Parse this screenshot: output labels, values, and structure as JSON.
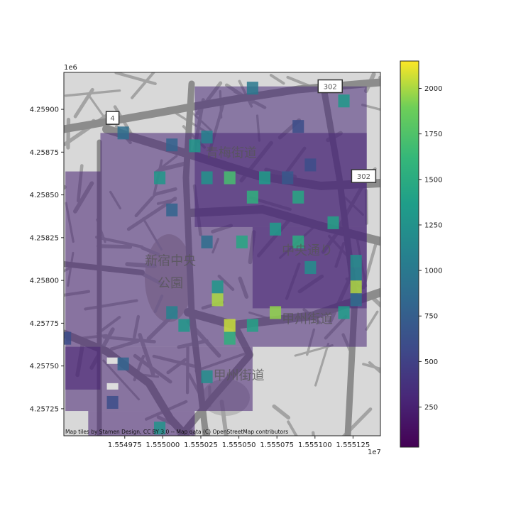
{
  "chart_data": {
    "type": "heatmap",
    "title": "",
    "xlabel": "",
    "ylabel": "",
    "x_offset_label": "1e7",
    "y_offset_label": "1e6",
    "xlim": [
      1554935,
      1555143
    ],
    "ylim": [
      4257092,
      4259216
    ],
    "x_ticks": [
      1554975,
      1555000,
      1555025,
      1555050,
      1555075,
      1555100,
      1555125
    ],
    "x_tick_labels": [
      "1.554975",
      "1.555000",
      "1.555025",
      "1.555050",
      "1.555075",
      "1.555100",
      "1.555125"
    ],
    "y_ticks": [
      4257250,
      4257500,
      4257750,
      4258000,
      4258250,
      4258500,
      4258750,
      4259000
    ],
    "y_tick_labels": [
      "4.25725",
      "4.25750",
      "4.25775",
      "4.25800",
      "4.25825",
      "4.25850",
      "4.25875",
      "4.25900"
    ],
    "grid": false,
    "colormap": "viridis",
    "colorbar": {
      "min": 30,
      "max": 2150,
      "ticks": [
        250,
        500,
        750,
        1000,
        1250,
        1500,
        1750,
        2000
      ],
      "tick_labels": [
        "250",
        "500",
        "750",
        "1000",
        "1250",
        "1500",
        "1750",
        "2000"
      ]
    },
    "cell_size": 7.5,
    "attribution": "Map tiles by Stamen Design, CC BY 3.0 -- Map data (C) OpenStreetMap contributors",
    "map_labels": [
      {
        "text": "青梅街道",
        "x": 1555045,
        "y": 4258720
      },
      {
        "text": "中央通り",
        "x": 1555095,
        "y": 4258150
      },
      {
        "text": "新宿中央",
        "x": 1555005,
        "y": 4258090
      },
      {
        "text": "公園",
        "x": 1555005,
        "y": 4257960
      },
      {
        "text": "甲州街道",
        "x": 1555095,
        "y": 4257750
      },
      {
        "text": "甲州街道",
        "x": 1555050,
        "y": 4257420
      },
      {
        "text": "4",
        "x": 1554967,
        "y": 4258950
      },
      {
        "text": "302",
        "x": 1555110,
        "y": 4259135
      },
      {
        "text": "302",
        "x": 1555132,
        "y": 4258610
      }
    ],
    "hotspots": [
      {
        "x": 1555059,
        "y": 4259124,
        "value": 1000
      },
      {
        "x": 1555119,
        "y": 4259049,
        "value": 1300
      },
      {
        "x": 1555089,
        "y": 4258900,
        "value": 600
      },
      {
        "x": 1554974,
        "y": 4258862,
        "value": 900
      },
      {
        "x": 1555006,
        "y": 4258792,
        "value": 800
      },
      {
        "x": 1555029,
        "y": 4258838,
        "value": 1100
      },
      {
        "x": 1554998,
        "y": 4258600,
        "value": 1300
      },
      {
        "x": 1555029,
        "y": 4258600,
        "value": 1250
      },
      {
        "x": 1555044,
        "y": 4258600,
        "value": 1700
      },
      {
        "x": 1555067,
        "y": 4258600,
        "value": 1350
      },
      {
        "x": 1555082,
        "y": 4258600,
        "value": 700
      },
      {
        "x": 1555097,
        "y": 4258675,
        "value": 600
      },
      {
        "x": 1555059,
        "y": 4258487,
        "value": 1550
      },
      {
        "x": 1555089,
        "y": 4258487,
        "value": 1450
      },
      {
        "x": 1555006,
        "y": 4258412,
        "value": 800
      },
      {
        "x": 1555112,
        "y": 4258337,
        "value": 1400
      },
      {
        "x": 1555074,
        "y": 4258300,
        "value": 1350
      },
      {
        "x": 1555089,
        "y": 4258225,
        "value": 1500
      },
      {
        "x": 1555052,
        "y": 4258225,
        "value": 1450
      },
      {
        "x": 1555029,
        "y": 4258225,
        "value": 900
      },
      {
        "x": 1555097,
        "y": 4258075,
        "value": 1200
      },
      {
        "x": 1555127,
        "y": 4258112,
        "value": 1200
      },
      {
        "x": 1555127,
        "y": 4258037,
        "value": 1150
      },
      {
        "x": 1555127,
        "y": 4257962,
        "value": 2000
      },
      {
        "x": 1555036,
        "y": 4257962,
        "value": 1300
      },
      {
        "x": 1555036,
        "y": 4257887,
        "value": 2000
      },
      {
        "x": 1555006,
        "y": 4257812,
        "value": 1100
      },
      {
        "x": 1555014,
        "y": 4257737,
        "value": 1300
      },
      {
        "x": 1555044,
        "y": 4257737,
        "value": 2050
      },
      {
        "x": 1555044,
        "y": 4257662,
        "value": 1550
      },
      {
        "x": 1555059,
        "y": 4257737,
        "value": 1400
      },
      {
        "x": 1555074,
        "y": 4257812,
        "value": 1950
      },
      {
        "x": 1555119,
        "y": 4257812,
        "value": 1350
      },
      {
        "x": 1555127,
        "y": 4257887,
        "value": 900
      },
      {
        "x": 1554974,
        "y": 4257512,
        "value": 800
      },
      {
        "x": 1555029,
        "y": 4257437,
        "value": 1200
      },
      {
        "x": 1554998,
        "y": 4257137,
        "value": 1250
      },
      {
        "x": 1554967,
        "y": 4257287,
        "value": 600
      },
      {
        "x": 1554936,
        "y": 4257662,
        "value": 600
      },
      {
        "x": 1555021,
        "y": 4258787,
        "value": 1300
      }
    ],
    "blanks": [
      {
        "x": 1554967,
        "y": 4257512
      },
      {
        "x": 1554967,
        "y": 4257362
      }
    ]
  }
}
